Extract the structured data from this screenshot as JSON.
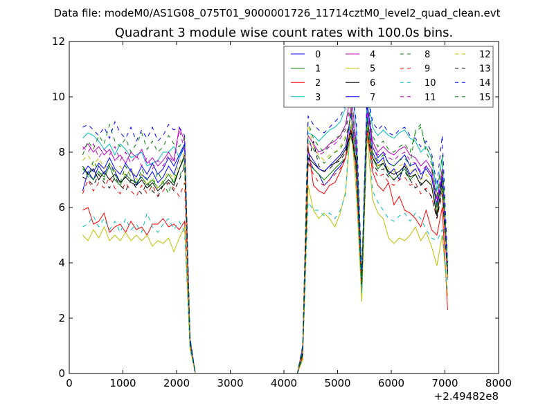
{
  "header": {
    "data_file": "Data file: modeM0/AS1G08_075T01_9000001726_11714cztM0_level2_quad_clean.evt"
  },
  "chart_data": {
    "type": "line",
    "title": "Quadrant 3 module wise count rates with 100.0s bins.",
    "xlabel": "",
    "ylabel": "",
    "x_offset_label": "+2.49482e8",
    "xlim": [
      0,
      8000
    ],
    "ylim": [
      0,
      12
    ],
    "xticks": [
      0,
      1000,
      2000,
      3000,
      4000,
      5000,
      6000,
      7000,
      8000
    ],
    "yticks": [
      0,
      2,
      4,
      6,
      8,
      10,
      12
    ],
    "grid": false,
    "legend_position": "top-right",
    "legend_columns": 4,
    "x": [
      250,
      350,
      450,
      550,
      650,
      750,
      850,
      950,
      1050,
      1150,
      1250,
      1350,
      1450,
      1550,
      1650,
      1750,
      1850,
      1950,
      2050,
      2150,
      2250,
      2350,
      2450,
      2550,
      2650,
      2750,
      2850,
      2950,
      3050,
      3150,
      3250,
      3350,
      3450,
      3550,
      3650,
      3750,
      3850,
      3950,
      4050,
      4150,
      4250,
      4350,
      4450,
      4550,
      4650,
      4750,
      4850,
      4950,
      5050,
      5150,
      5250,
      5350,
      5450,
      5550,
      5650,
      5750,
      5850,
      5950,
      6050,
      6150,
      6250,
      6350,
      6450,
      6550,
      6650,
      6750,
      6850,
      6950,
      7050
    ],
    "series": [
      {
        "name": "0",
        "color": "#0000ff",
        "dash": "solid",
        "values": [
          6.6,
          7.3,
          7.0,
          7.5,
          7.2,
          7.6,
          7.3,
          6.9,
          7.1,
          7.4,
          6.8,
          7.2,
          7.0,
          7.3,
          6.9,
          7.1,
          7.5,
          7.2,
          7.8,
          8.2,
          1.2,
          0,
          0,
          0,
          0,
          0,
          0,
          0,
          0,
          0,
          0,
          0,
          0,
          0,
          0,
          0,
          0,
          0,
          0,
          0,
          0,
          0.8,
          7.8,
          7.4,
          7.2,
          6.8,
          7.0,
          7.3,
          7.5,
          7.8,
          9.0,
          7.6,
          3.0,
          9.2,
          8.0,
          7.6,
          7.8,
          7.2,
          7.4,
          7.0,
          7.6,
          7.2,
          7.4,
          7.0,
          7.5,
          7.2,
          6.0,
          7.0,
          3.8
        ]
      },
      {
        "name": "1",
        "color": "#008000",
        "dash": "solid",
        "values": [
          7.4,
          7.2,
          7.0,
          7.3,
          7.1,
          7.5,
          7.0,
          6.8,
          7.2,
          7.0,
          6.9,
          7.1,
          6.8,
          7.0,
          6.7,
          6.9,
          7.2,
          6.9,
          7.4,
          7.8,
          1.1,
          0,
          0,
          0,
          0,
          0,
          0,
          0,
          0,
          0,
          0,
          0,
          0,
          0,
          0,
          0,
          0,
          0,
          0,
          0,
          0,
          0.7,
          7.6,
          7.4,
          7.2,
          7.0,
          7.2,
          7.4,
          7.6,
          7.8,
          8.6,
          7.4,
          3.2,
          9.0,
          7.8,
          7.4,
          7.6,
          7.2,
          7.0,
          7.2,
          7.4,
          7.0,
          7.2,
          6.8,
          7.0,
          6.8,
          5.8,
          6.8,
          3.6
        ]
      },
      {
        "name": "2",
        "color": "#ff0000",
        "dash": "solid",
        "values": [
          5.9,
          6.0,
          5.4,
          5.5,
          5.8,
          5.1,
          5.3,
          5.4,
          5.1,
          5.5,
          5.2,
          5.3,
          5.0,
          5.4,
          5.4,
          5.6,
          5.3,
          5.4,
          5.2,
          5.5,
          1.0,
          0,
          0,
          0,
          0,
          0,
          0,
          0,
          0,
          0,
          0,
          0,
          0,
          0,
          0,
          0,
          0,
          0,
          0,
          0,
          0,
          0.6,
          8.2,
          6.8,
          6.6,
          6.5,
          6.8,
          6.9,
          7.3,
          7.8,
          9.6,
          7.1,
          3.1,
          8.7,
          7.3,
          6.8,
          6.6,
          6.9,
          6.1,
          6.4,
          5.9,
          5.8,
          5.6,
          5.3,
          5.9,
          5.2,
          5.0,
          6.0,
          2.3
        ]
      },
      {
        "name": "3",
        "color": "#00bfbf",
        "dash": "solid",
        "values": [
          8.5,
          8.7,
          8.6,
          8.4,
          8.1,
          8.3,
          7.9,
          8.3,
          8.1,
          7.8,
          7.9,
          8.0,
          7.5,
          7.6,
          7.7,
          8.0,
          8.0,
          8.2,
          7.8,
          8.3,
          1.3,
          0,
          0,
          0,
          0,
          0,
          0,
          0,
          0,
          0,
          0,
          0,
          0,
          0,
          0,
          0,
          0,
          0,
          0,
          0,
          0,
          1.0,
          8.7,
          8.6,
          8.4,
          8.6,
          8.8,
          8.9,
          9.1,
          9.6,
          10.7,
          8.8,
          3.5,
          10.2,
          8.9,
          8.6,
          8.8,
          8.6,
          8.5,
          8.7,
          8.8,
          8.5,
          8.4,
          8.0,
          8.2,
          7.8,
          6.6,
          7.8,
          3.9
        ]
      },
      {
        "name": "4",
        "color": "#bf00bf",
        "dash": "solid",
        "values": [
          8.1,
          8.3,
          8.0,
          8.2,
          7.9,
          8.1,
          7.7,
          7.9,
          7.6,
          8.0,
          7.8,
          8.1,
          7.6,
          7.8,
          7.5,
          7.7,
          8.0,
          7.7,
          8.9,
          8.4,
          1.2,
          0,
          0,
          0,
          0,
          0,
          0,
          0,
          0,
          0,
          0,
          0,
          0,
          0,
          0,
          0,
          0,
          0,
          0,
          0,
          0,
          0.9,
          8.6,
          8.3,
          8.0,
          8.1,
          8.3,
          8.4,
          8.6,
          9.0,
          10.2,
          8.3,
          3.3,
          9.8,
          8.4,
          8.0,
          8.2,
          8.0,
          7.9,
          8.1,
          8.2,
          7.9,
          7.8,
          7.5,
          7.7,
          7.4,
          6.3,
          7.4,
          3.7
        ]
      },
      {
        "name": "5",
        "color": "#bfbf00",
        "dash": "solid",
        "values": [
          5.0,
          4.8,
          5.2,
          4.9,
          5.3,
          4.8,
          5.0,
          4.8,
          5.1,
          4.8,
          5.0,
          4.8,
          5.0,
          4.6,
          4.8,
          4.7,
          4.9,
          4.4,
          4.9,
          5.3,
          0.9,
          0,
          0,
          0,
          0,
          0,
          0,
          0,
          0,
          0,
          0,
          0,
          0,
          0,
          0,
          0,
          0,
          0,
          0,
          0,
          0,
          0.5,
          6.8,
          5.9,
          5.6,
          5.8,
          5.6,
          5.3,
          5.8,
          6.6,
          9.0,
          6.5,
          2.6,
          8.6,
          6.3,
          5.8,
          5.6,
          4.9,
          4.7,
          4.9,
          4.8,
          5.0,
          5.3,
          4.8,
          5.1,
          4.6,
          3.9,
          5.0,
          2.8
        ]
      },
      {
        "name": "6",
        "color": "#000000",
        "dash": "solid",
        "values": [
          7.5,
          7.2,
          7.4,
          7.0,
          7.3,
          7.0,
          7.2,
          6.9,
          7.1,
          6.9,
          6.8,
          7.0,
          6.7,
          6.9,
          6.6,
          6.8,
          7.0,
          6.8,
          7.4,
          7.9,
          1.1,
          0,
          0,
          0,
          0,
          0,
          0,
          0,
          0,
          0,
          0,
          0,
          0,
          0,
          0,
          0,
          0,
          0,
          0,
          0,
          0,
          0.7,
          7.8,
          7.6,
          7.4,
          7.3,
          7.5,
          7.6,
          7.8,
          8.1,
          8.8,
          7.6,
          3.3,
          9.3,
          7.8,
          7.5,
          7.6,
          7.3,
          7.2,
          7.3,
          7.5,
          7.1,
          7.2,
          6.8,
          7.0,
          6.8,
          5.7,
          6.9,
          3.5
        ]
      },
      {
        "name": "7",
        "color": "#0000ff",
        "dash": "solid",
        "values": [
          7.2,
          7.5,
          7.3,
          7.6,
          7.4,
          7.8,
          7.4,
          7.2,
          7.6,
          7.3,
          7.1,
          7.5,
          7.2,
          7.6,
          7.2,
          7.4,
          7.8,
          7.5,
          7.9,
          8.3,
          1.2,
          0,
          0,
          0,
          0,
          0,
          0,
          0,
          0,
          0,
          0,
          0,
          0,
          0,
          0,
          0,
          0,
          0,
          0,
          0,
          0,
          0.8,
          8.0,
          7.7,
          7.4,
          7.3,
          7.5,
          7.7,
          7.9,
          8.2,
          9.4,
          7.9,
          3.1,
          9.7,
          8.2,
          7.8,
          8.0,
          7.6,
          7.5,
          7.7,
          7.9,
          7.5,
          7.6,
          7.2,
          7.4,
          7.1,
          6.1,
          7.1,
          3.7
        ]
      },
      {
        "name": "8",
        "color": "#008000",
        "dash": "dashed",
        "values": [
          7.9,
          8.4,
          8.1,
          8.6,
          8.3,
          9.0,
          8.4,
          8.2,
          8.5,
          8.0,
          8.3,
          8.7,
          8.1,
          8.4,
          8.0,
          8.2,
          8.6,
          8.3,
          8.2,
          8.5,
          1.2,
          0,
          0,
          0,
          0,
          0,
          0,
          0,
          0,
          0,
          0,
          0,
          0,
          0,
          0,
          0,
          0,
          0,
          0,
          0,
          0,
          0.9,
          9.1,
          8.5,
          8.2,
          8.0,
          8.3,
          8.5,
          8.6,
          8.9,
          9.8,
          8.2,
          3.4,
          10.0,
          8.6,
          8.2,
          8.4,
          8.1,
          8.0,
          8.2,
          8.3,
          8.0,
          8.7,
          8.9,
          8.2,
          7.8,
          6.4,
          7.9,
          3.8
        ]
      },
      {
        "name": "9",
        "color": "#ff0000",
        "dash": "dashed",
        "values": [
          6.5,
          7.0,
          6.6,
          6.9,
          6.7,
          7.1,
          6.7,
          6.5,
          6.9,
          6.6,
          6.4,
          6.8,
          6.5,
          6.8,
          6.4,
          6.6,
          6.9,
          6.7,
          6.4,
          6.9,
          1.0,
          0,
          0,
          0,
          0,
          0,
          0,
          0,
          0,
          0,
          0,
          0,
          0,
          0,
          0,
          0,
          0,
          0,
          0,
          0,
          0,
          0.7,
          7.6,
          7.2,
          6.9,
          6.8,
          7.0,
          7.2,
          7.4,
          7.8,
          8.8,
          7.3,
          3.1,
          8.9,
          7.5,
          7.1,
          7.2,
          6.9,
          6.8,
          7.0,
          7.1,
          6.8,
          6.9,
          6.5,
          6.7,
          6.4,
          5.6,
          6.5,
          3.4
        ]
      },
      {
        "name": "10",
        "color": "#00bfbf",
        "dash": "dashed",
        "values": [
          5.3,
          5.4,
          5.7,
          5.3,
          5.6,
          5.2,
          5.5,
          5.1,
          5.6,
          5.2,
          5.4,
          5.1,
          5.8,
          5.3,
          5.1,
          5.4,
          5.6,
          5.2,
          5.5,
          5.1,
          0.9,
          0,
          0,
          0,
          0,
          0,
          0,
          0,
          0,
          0,
          0,
          0,
          0,
          0,
          0,
          0,
          0,
          0,
          0,
          0,
          0,
          0.6,
          6.2,
          5.9,
          5.9,
          5.7,
          5.8,
          5.6,
          5.9,
          6.5,
          9.8,
          6.8,
          2.9,
          9.6,
          6.6,
          6.2,
          5.9,
          5.6,
          5.5,
          5.7,
          5.8,
          5.5,
          5.8,
          5.6,
          5.2,
          4.9,
          4.8,
          5.2,
          2.9
        ]
      },
      {
        "name": "11",
        "color": "#bf00bf",
        "dash": "dashed",
        "values": [
          8.2,
          8.0,
          8.3,
          7.8,
          8.1,
          7.9,
          8.2,
          7.7,
          8.0,
          7.6,
          7.9,
          7.5,
          7.8,
          7.4,
          7.7,
          7.5,
          7.9,
          7.6,
          8.8,
          8.1,
          1.2,
          0,
          0,
          0,
          0,
          0,
          0,
          0,
          0,
          0,
          0,
          0,
          0,
          0,
          0,
          0,
          0,
          0,
          0,
          0,
          0,
          0.9,
          8.4,
          8.1,
          7.9,
          8.0,
          8.2,
          8.3,
          8.5,
          8.8,
          9.6,
          8.1,
          3.3,
          9.5,
          8.2,
          7.9,
          8.0,
          7.8,
          7.7,
          7.9,
          8.0,
          7.7,
          7.6,
          7.3,
          7.5,
          7.2,
          6.2,
          7.2,
          3.6
        ]
      },
      {
        "name": "12",
        "color": "#bfbf00",
        "dash": "dashed",
        "values": [
          7.7,
          7.9,
          7.5,
          7.8,
          7.4,
          7.6,
          7.3,
          7.5,
          7.1,
          7.4,
          7.0,
          7.2,
          6.8,
          7.1,
          6.7,
          7.0,
          7.3,
          7.0,
          7.6,
          8.0,
          1.1,
          0,
          0,
          0,
          0,
          0,
          0,
          0,
          0,
          0,
          0,
          0,
          0,
          0,
          0,
          0,
          0,
          0,
          0,
          0,
          0,
          0.8,
          9.0,
          8.2,
          7.9,
          7.7,
          7.9,
          8.0,
          8.2,
          8.6,
          9.2,
          7.8,
          3.2,
          9.0,
          7.9,
          7.5,
          7.7,
          7.4,
          7.3,
          7.5,
          7.6,
          7.3,
          7.4,
          7.0,
          7.2,
          6.9,
          5.9,
          6.9,
          3.5
        ]
      },
      {
        "name": "13",
        "color": "#000000",
        "dash": "dashed",
        "values": [
          7.1,
          7.0,
          6.8,
          7.2,
          6.9,
          6.7,
          7.1,
          6.8,
          6.6,
          7.0,
          6.7,
          6.5,
          6.9,
          6.6,
          6.4,
          6.8,
          6.9,
          6.6,
          7.0,
          7.5,
          1.1,
          0,
          0,
          0,
          0,
          0,
          0,
          0,
          0,
          0,
          0,
          0,
          0,
          0,
          0,
          0,
          0,
          0,
          0,
          0,
          0,
          0.7,
          7.6,
          8.4,
          7.5,
          7.3,
          7.4,
          7.6,
          7.7,
          8.0,
          8.7,
          7.5,
          3.2,
          8.8,
          7.6,
          7.3,
          7.4,
          7.1,
          7.0,
          7.2,
          7.3,
          7.0,
          6.7,
          6.9,
          6.6,
          6.4,
          5.6,
          6.6,
          3.4
        ]
      },
      {
        "name": "14",
        "color": "#0000ff",
        "dash": "dashed",
        "values": [
          8.9,
          9.0,
          8.8,
          8.6,
          8.9,
          8.5,
          9.1,
          8.7,
          8.5,
          8.9,
          8.4,
          8.8,
          8.5,
          8.9,
          8.4,
          8.6,
          9.0,
          8.8,
          8.9,
          8.6,
          1.3,
          0,
          0,
          0,
          0,
          0,
          0,
          0,
          0,
          0,
          0,
          0,
          0,
          0,
          0,
          0,
          0,
          0,
          0,
          0,
          0,
          1.0,
          9.3,
          9.0,
          8.8,
          8.7,
          8.9,
          9.1,
          9.3,
          9.7,
          10.5,
          9.1,
          3.6,
          10.3,
          9.1,
          8.8,
          9.0,
          8.7,
          8.6,
          8.8,
          8.9,
          8.6,
          8.5,
          8.2,
          8.4,
          8.0,
          6.8,
          8.6,
          4.0
        ]
      },
      {
        "name": "15",
        "color": "#008000",
        "dash": "dashed",
        "values": [
          7.5,
          7.1,
          7.7,
          7.3,
          7.0,
          7.6,
          7.2,
          6.9,
          7.5,
          7.1,
          6.8,
          7.4,
          7.0,
          6.7,
          7.3,
          6.9,
          6.5,
          7.2,
          7.1,
          7.6,
          1.1,
          0,
          0,
          0,
          0,
          0,
          0,
          0,
          0,
          0,
          0,
          0,
          0,
          0,
          0,
          0,
          0,
          0,
          0,
          0,
          0,
          0.8,
          8.5,
          8.1,
          7.8,
          7.6,
          7.8,
          8.0,
          8.1,
          8.5,
          9.3,
          7.9,
          3.3,
          9.1,
          8.0,
          7.7,
          7.9,
          7.6,
          7.5,
          7.7,
          7.8,
          7.5,
          8.8,
          9.0,
          8.0,
          7.6,
          6.0,
          7.3,
          3.6
        ]
      }
    ]
  }
}
